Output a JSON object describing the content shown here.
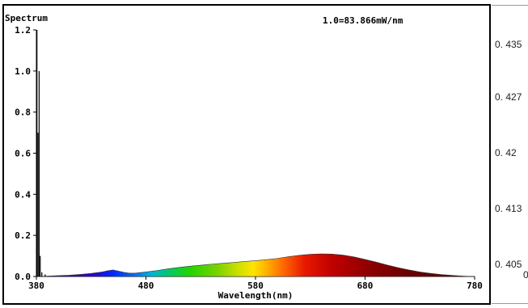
{
  "chart_data": {
    "type": "area",
    "title": "Spectrum",
    "annotation": "1.0=83.866mW/nm",
    "xlabel": "Wavelength(nm)",
    "ylabel": "",
    "xlim": [
      380,
      780
    ],
    "ylim": [
      0,
      1.2
    ],
    "x_ticks": [
      380,
      480,
      580,
      680,
      780
    ],
    "x_tick_labels": [
      "380",
      "480",
      "580",
      "680",
      "780"
    ],
    "y_ticks": [
      0,
      0.2,
      0.4,
      0.6,
      0.8,
      1.0,
      1.2
    ],
    "y_tick_labels": [
      "0.0",
      "0.2",
      "0.4",
      "0.6",
      "0.8",
      "1.0",
      "1.2"
    ],
    "grid": false,
    "spikes": [
      {
        "x": 380.5,
        "y": 1.2
      },
      {
        "x": 381.5,
        "y": 0.7
      },
      {
        "x": 382.5,
        "y": 1.0
      },
      {
        "x": 383.5,
        "y": 0.1
      },
      {
        "x": 385.0,
        "y": 0.02
      },
      {
        "x": 388.0,
        "y": 0.01
      }
    ],
    "series": [
      {
        "x": [
          380,
          390,
          400,
          410,
          420,
          430,
          440,
          445,
          450,
          455,
          460,
          465,
          470,
          475,
          480,
          490,
          500,
          510,
          520,
          530,
          540,
          550,
          560,
          570,
          580,
          590,
          600,
          610,
          620,
          630,
          640,
          650,
          660,
          670,
          680,
          690,
          700,
          710,
          720,
          730,
          740,
          750,
          760,
          770,
          780
        ],
        "values": [
          0.0,
          0.002,
          0.004,
          0.006,
          0.01,
          0.015,
          0.022,
          0.028,
          0.032,
          0.026,
          0.02,
          0.016,
          0.016,
          0.019,
          0.022,
          0.029,
          0.037,
          0.044,
          0.05,
          0.055,
          0.06,
          0.064,
          0.068,
          0.073,
          0.077,
          0.082,
          0.088,
          0.096,
          0.103,
          0.108,
          0.11,
          0.109,
          0.104,
          0.095,
          0.083,
          0.07,
          0.056,
          0.043,
          0.032,
          0.022,
          0.015,
          0.009,
          0.005,
          0.002,
          0.0
        ]
      }
    ]
  },
  "right_axis": {
    "tick_labels": [
      "0. 435",
      "0. 427",
      "0. 42",
      "0. 413",
      "0. 405"
    ],
    "edge_char": "0"
  }
}
